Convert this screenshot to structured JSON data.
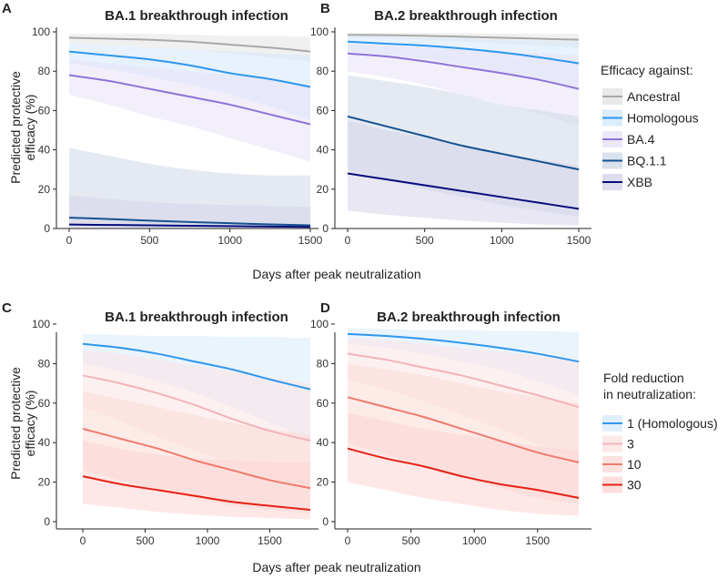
{
  "panels_top": {
    "xlabel": "Days after peak neutralization",
    "ylabel_line1": "Predicted protective",
    "ylabel_line2": "efficacy (%)",
    "legend_title": "Efficacy against:"
  },
  "panels_bottom": {
    "xlabel": "Days after peak neutralization",
    "ylabel_line1": "Predicted protective",
    "ylabel_line2": "efficacy (%)",
    "legend_title_line1": "Fold reduction",
    "legend_title_line2": "in neutralization:"
  },
  "chart_data": [
    {
      "id": "A",
      "type": "line",
      "title": "BA.1 breakthrough infection",
      "xlabel": "Days after peak neutralization",
      "ylabel": "Predicted protective efficacy (%)",
      "xlim": [
        0,
        1500
      ],
      "ylim": [
        0,
        100
      ],
      "xticks": [
        0,
        500,
        1000,
        1500
      ],
      "yticks": [
        0,
        20,
        40,
        60,
        80,
        100
      ],
      "x": [
        0,
        250,
        500,
        750,
        1000,
        1250,
        1500
      ],
      "series": [
        {
          "name": "Ancestral",
          "color": "#a8a8a8",
          "band": "#e4e4e4",
          "values": [
            97,
            96.5,
            96,
            95,
            93.5,
            92,
            90
          ],
          "lower": [
            94,
            93,
            92,
            91,
            89,
            87,
            85
          ],
          "upper": [
            99,
            99,
            99,
            98.5,
            98,
            98,
            97.5
          ]
        },
        {
          "name": "Homologous",
          "color": "#2f97ee",
          "band": "#d3e8fb",
          "values": [
            90,
            88,
            86,
            83,
            79,
            76,
            72
          ],
          "lower": [
            84,
            81,
            77,
            73,
            68,
            62,
            55
          ],
          "upper": [
            94,
            93,
            92,
            91,
            90,
            89,
            88
          ]
        },
        {
          "name": "BA.4",
          "color": "#8f74d6",
          "band": "#e7e1f7",
          "values": [
            78,
            75,
            71,
            67,
            63,
            58,
            53
          ],
          "lower": [
            68,
            63,
            57,
            52,
            46,
            40,
            34
          ],
          "upper": [
            86,
            84,
            82,
            80,
            78,
            76,
            73
          ]
        },
        {
          "name": "BQ.1.1",
          "color": "#155290",
          "band": "#cfd9e8",
          "values": [
            5.5,
            4.8,
            4,
            3.3,
            2.7,
            2.1,
            1.6
          ],
          "lower": [
            1,
            0.8,
            0.6,
            0.5,
            0.4,
            0.3,
            0.2
          ],
          "upper": [
            41,
            37,
            33,
            30,
            28,
            27,
            27
          ]
        },
        {
          "name": "XBB",
          "color": "#080c7c",
          "band": "#d5d4ea",
          "values": [
            2,
            1.8,
            1.6,
            1.4,
            1.2,
            1.0,
            0.8
          ],
          "lower": [
            0.3,
            0.25,
            0.2,
            0.15,
            0.12,
            0.1,
            0.08
          ],
          "upper": [
            17,
            15,
            13.5,
            12.5,
            12,
            11.5,
            11
          ]
        }
      ]
    },
    {
      "id": "B",
      "type": "line",
      "title": "BA.2 breakthrough infection",
      "xlabel": "Days after peak neutralization",
      "ylabel": "Predicted protective efficacy (%)",
      "xlim": [
        0,
        1500
      ],
      "ylim": [
        0,
        100
      ],
      "xticks": [
        0,
        500,
        1000,
        1500
      ],
      "yticks": [
        0,
        20,
        40,
        60,
        80,
        100
      ],
      "x": [
        0,
        250,
        500,
        750,
        1000,
        1250,
        1500
      ],
      "series": [
        {
          "name": "Ancestral",
          "color": "#a8a8a8",
          "band": "#e4e4e4",
          "values": [
            98.5,
            98.3,
            98,
            97.5,
            97,
            96.5,
            96
          ],
          "lower": [
            97,
            96.5,
            96,
            95,
            94,
            93,
            92
          ],
          "upper": [
            99.5,
            99.5,
            99.5,
            99.3,
            99.2,
            99,
            99
          ]
        },
        {
          "name": "Homologous",
          "color": "#2f97ee",
          "band": "#d3e8fb",
          "values": [
            95,
            94,
            93,
            91.5,
            89.5,
            87,
            84
          ],
          "lower": [
            90,
            88,
            86,
            83,
            79,
            75,
            70
          ],
          "upper": [
            98,
            97.5,
            97,
            96.5,
            96,
            95.5,
            95
          ]
        },
        {
          "name": "BA.4",
          "color": "#8f74d6",
          "band": "#e7e1f7",
          "values": [
            89,
            87.5,
            85,
            82,
            79,
            75.5,
            71
          ],
          "lower": [
            80,
            77,
            73,
            68,
            63,
            58,
            52
          ],
          "upper": [
            94,
            93,
            92,
            91,
            90,
            89,
            88
          ]
        },
        {
          "name": "BQ.1.1",
          "color": "#155290",
          "band": "#cfd9e8",
          "values": [
            57,
            52,
            47,
            42,
            38,
            34,
            30
          ],
          "lower": [
            30,
            25,
            20,
            16,
            12,
            9,
            6
          ],
          "upper": [
            78,
            75,
            72,
            68,
            63,
            60,
            57
          ]
        },
        {
          "name": "XBB",
          "color": "#080c7c",
          "band": "#d5d4ea",
          "values": [
            28,
            25,
            22,
            19,
            16,
            13,
            10
          ],
          "lower": [
            9,
            7,
            5.5,
            4,
            3,
            2,
            1.5
          ],
          "upper": [
            55,
            50,
            46,
            42,
            38,
            35,
            32
          ]
        }
      ]
    },
    {
      "id": "C",
      "type": "line",
      "title": "BA.1 breakthrough infection",
      "xlabel": "Days after peak neutralization",
      "ylabel": "Predicted protective efficacy (%)",
      "xlim": [
        0,
        1825
      ],
      "ylim": [
        0,
        100
      ],
      "xticks": [
        0,
        500,
        1000,
        1500
      ],
      "yticks": [
        0,
        20,
        40,
        60,
        80,
        100
      ],
      "x": [
        0,
        300,
        600,
        900,
        1200,
        1500,
        1825
      ],
      "series": [
        {
          "name": "1 (Homologous)",
          "color": "#2f97ee",
          "band": "#d9ebfc",
          "values": [
            90,
            88,
            85,
            81,
            77,
            72,
            67
          ],
          "lower": [
            80,
            76,
            71,
            65,
            58,
            50,
            41
          ],
          "upper": [
            95,
            94.5,
            94,
            94,
            93.5,
            93.5,
            93
          ]
        },
        {
          "name": "3",
          "color": "#f3b3b9",
          "band": "#fbe3e5",
          "values": [
            74,
            70,
            65,
            59,
            52,
            46,
            41
          ],
          "lower": [
            58,
            51,
            43,
            36,
            29,
            22,
            17
          ],
          "upper": [
            87,
            85,
            82,
            79,
            76,
            73,
            70
          ]
        },
        {
          "name": "10",
          "color": "#ef7a6e",
          "band": "#fbdad6",
          "values": [
            47,
            42,
            37,
            31,
            26,
            21,
            17
          ],
          "lower": [
            26,
            21,
            16,
            12,
            8,
            6,
            4
          ],
          "upper": [
            66,
            62,
            58,
            54,
            50,
            47,
            44
          ]
        },
        {
          "name": "30",
          "color": "#e62117",
          "band": "#fcd6d3",
          "values": [
            23,
            19,
            16,
            13,
            10,
            8,
            6
          ],
          "lower": [
            9,
            7,
            5,
            3.5,
            2.5,
            1.8,
            1.2
          ],
          "upper": [
            41,
            37,
            34,
            32,
            31,
            30,
            30
          ]
        }
      ]
    },
    {
      "id": "D",
      "type": "line",
      "title": "BA.2 breakthrough infection",
      "xlabel": "Days after peak neutralization",
      "ylabel": "Predicted protective efficacy (%)",
      "xlim": [
        0,
        1825
      ],
      "ylim": [
        0,
        100
      ],
      "xticks": [
        0,
        500,
        1000,
        1500
      ],
      "yticks": [
        0,
        20,
        40,
        60,
        80,
        100
      ],
      "x": [
        0,
        300,
        600,
        900,
        1200,
        1500,
        1825
      ],
      "series": [
        {
          "name": "1 (Homologous)",
          "color": "#2f97ee",
          "band": "#d9ebfc",
          "values": [
            95,
            94,
            92.5,
            90.5,
            88,
            85,
            81
          ],
          "lower": [
            90,
            88,
            85,
            81,
            77,
            71,
            64
          ],
          "upper": [
            98,
            97.5,
            97,
            97,
            96.5,
            96.5,
            96
          ]
        },
        {
          "name": "3",
          "color": "#f3b3b9",
          "band": "#fbe3e5",
          "values": [
            85,
            82,
            78,
            74,
            69,
            64,
            58
          ],
          "lower": [
            72,
            67,
            61,
            54,
            47,
            39,
            32
          ],
          "upper": [
            93,
            92,
            90,
            88,
            86,
            84,
            82
          ]
        },
        {
          "name": "10",
          "color": "#ef7a6e",
          "band": "#fbdad6",
          "values": [
            63,
            58,
            53,
            47,
            41,
            35,
            30
          ],
          "lower": [
            40,
            34,
            28,
            22,
            17,
            12,
            9
          ],
          "upper": [
            80,
            77,
            74,
            70,
            66,
            63,
            60
          ]
        },
        {
          "name": "30",
          "color": "#e62117",
          "band": "#fcd6d3",
          "values": [
            37,
            32,
            28,
            23,
            19,
            16,
            12
          ],
          "lower": [
            20,
            16,
            12,
            9,
            6,
            4,
            3
          ],
          "upper": [
            55,
            51,
            47,
            44,
            41,
            38,
            36
          ]
        }
      ]
    }
  ]
}
